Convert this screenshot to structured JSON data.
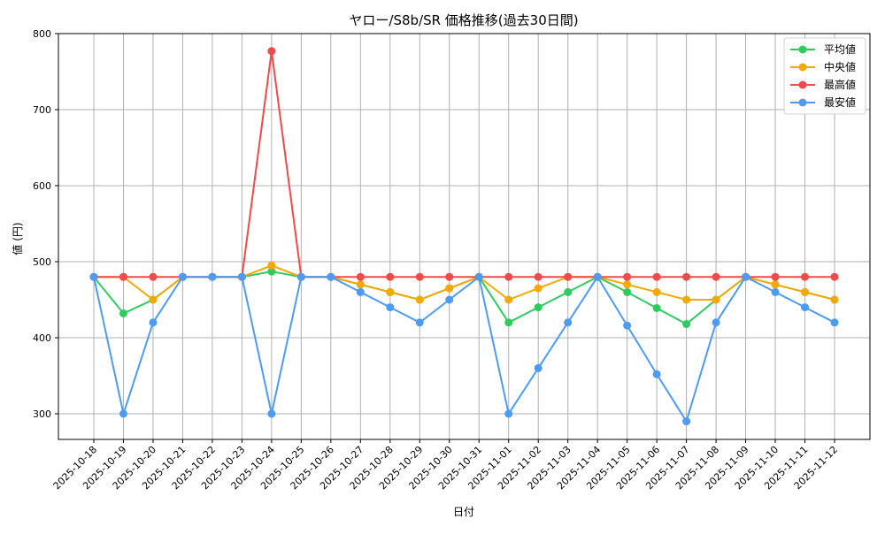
{
  "chart_data": {
    "type": "line",
    "title": "ヤロー/S8b/SR 価格推移(過去30日間)",
    "xlabel": "日付",
    "ylabel": "値 (円)",
    "ylim": [
      266,
      803
    ],
    "yticks": [
      300,
      400,
      500,
      600,
      700,
      800
    ],
    "grid": true,
    "legend_position": "upper right",
    "categories": [
      "2025-10-18",
      "2025-10-19",
      "2025-10-20",
      "2025-10-21",
      "2025-10-22",
      "2025-10-23",
      "2025-10-24",
      "2025-10-25",
      "2025-10-26",
      "2025-10-27",
      "2025-10-28",
      "2025-10-29",
      "2025-10-30",
      "2025-10-31",
      "2025-11-01",
      "2025-11-02",
      "2025-11-03",
      "2025-11-04",
      "2025-11-05",
      "2025-11-06",
      "2025-11-07",
      "2025-11-08",
      "2025-11-09",
      "2025-11-10",
      "2025-11-11",
      "2025-11-12"
    ],
    "series": [
      {
        "name": "平均値",
        "color": "#2ecc5f",
        "values": [
          480,
          432,
          450,
          480,
          480,
          480,
          487,
          480,
          480,
          470,
          460,
          450,
          465,
          480,
          420,
          440,
          460,
          480,
          460,
          439,
          418,
          450,
          480,
          470,
          460,
          450
        ]
      },
      {
        "name": "中央値",
        "color": "#f5a800",
        "values": [
          480,
          480,
          450,
          480,
          480,
          480,
          495,
          480,
          480,
          470,
          460,
          450,
          465,
          480,
          450,
          465,
          480,
          480,
          470,
          460,
          450,
          450,
          480,
          470,
          460,
          450
        ]
      },
      {
        "name": "最高値",
        "color": "#f04a4a",
        "values": [
          480,
          480,
          480,
          480,
          480,
          480,
          777,
          480,
          480,
          480,
          480,
          480,
          480,
          480,
          480,
          480,
          480,
          480,
          480,
          480,
          480,
          480,
          480,
          480,
          480,
          480
        ]
      },
      {
        "name": "最安値",
        "color": "#4d9bf5",
        "values": [
          480,
          300,
          420,
          480,
          480,
          480,
          300,
          480,
          480,
          460,
          440,
          420,
          450,
          480,
          300,
          360,
          420,
          480,
          416,
          352,
          290,
          420,
          480,
          460,
          440,
          420
        ]
      }
    ]
  }
}
